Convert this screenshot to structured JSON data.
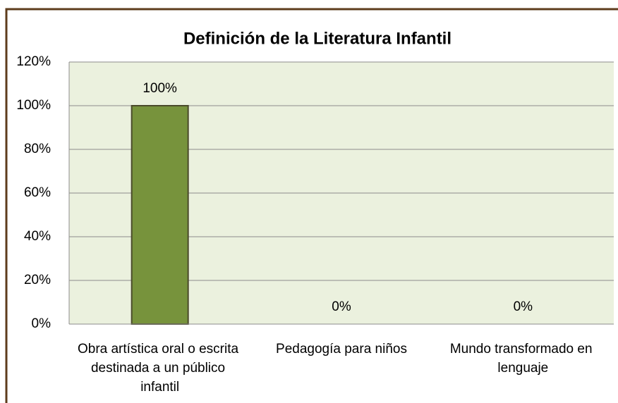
{
  "chart_data": {
    "type": "bar",
    "title": "Definición de la Literatura Infantil",
    "categories": [
      "Obra artística oral o escrita destinada a un público infantil",
      "Pedagogía para niños",
      "Mundo transformado en lenguaje"
    ],
    "values": [
      100,
      0,
      0
    ],
    "value_labels": [
      "100%",
      "0%",
      "0%"
    ],
    "colors": [
      "#77933c",
      "#8a9a78",
      "#a0654a"
    ],
    "ylim": [
      0,
      120
    ],
    "yticks": [
      {
        "value": 0,
        "label": "0%"
      },
      {
        "value": 20,
        "label": "20%"
      },
      {
        "value": 40,
        "label": "40%"
      },
      {
        "value": 60,
        "label": "60%"
      },
      {
        "value": 80,
        "label": "80%"
      },
      {
        "value": 100,
        "label": "100%"
      },
      {
        "value": 120,
        "label": "120%"
      }
    ],
    "grid": true
  }
}
